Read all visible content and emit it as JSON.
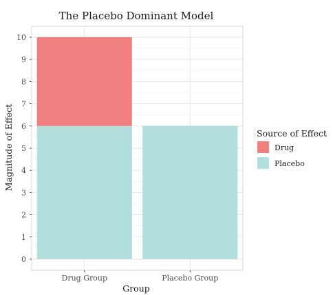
{
  "chart_data": {
    "type": "bar",
    "stacked": true,
    "title": "The Placebo Dominant Model",
    "xlabel": "Group",
    "ylabel": "Magnitude of Effect",
    "categories": [
      "Drug Group",
      "Placebo Group"
    ],
    "series": [
      {
        "name": "Placebo",
        "values": [
          6,
          6
        ],
        "color": "#b2dfdb"
      },
      {
        "name": "Drug",
        "values": [
          4,
          0
        ],
        "color": "#f08080"
      }
    ],
    "ylim": [
      0,
      10
    ],
    "yticks": [
      "0",
      "1",
      "2",
      "3",
      "4",
      "5",
      "6",
      "7",
      "8",
      "9",
      "10"
    ],
    "grid": true,
    "legend": {
      "title": "Source of Effect",
      "position": "right",
      "entries": [
        "Drug",
        "Placebo"
      ]
    }
  }
}
